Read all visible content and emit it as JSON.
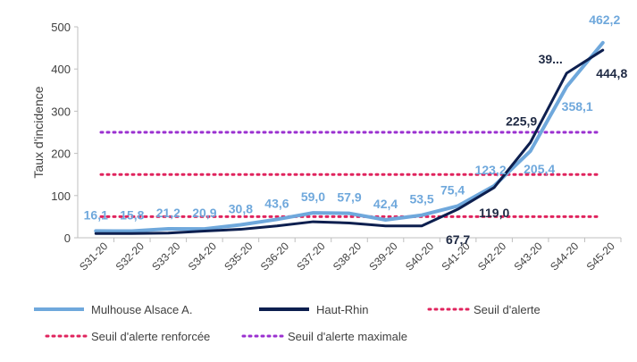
{
  "chart_data": {
    "type": "line",
    "ylabel": "Taux d'incidence",
    "ylim": [
      0,
      500
    ],
    "yticks": [
      "0",
      "100",
      "200",
      "300",
      "400",
      "500"
    ],
    "categories": [
      "S31-20",
      "S32-20",
      "S33-20",
      "S34-20",
      "S35-20",
      "S36-20",
      "S37-20",
      "S38-20",
      "S39-20",
      "S40-20",
      "S41-20",
      "S42-20",
      "S43-20",
      "S44-20",
      "S45-20"
    ],
    "series": [
      {
        "name": "Mulhouse Alsace A.",
        "color": "#6fa8dc",
        "values": [
          16.1,
          15.8,
          21.2,
          20.9,
          30.8,
          43.6,
          59.0,
          57.9,
          42.4,
          53.5,
          75.4,
          123.2,
          205.4,
          358.1,
          462.2
        ],
        "labels": [
          "16,1",
          "15,8",
          "21,2",
          "20,9",
          "30,8",
          "43,6",
          "59,0",
          "57,9",
          "42,4",
          "53,5",
          "75,4",
          "123,2",
          "205,4",
          "358,1",
          "462,2"
        ]
      },
      {
        "name": "Haut-Rhin",
        "color": "#0d1f4f",
        "values": [
          10,
          10,
          11,
          16,
          20,
          28,
          38,
          35,
          28,
          28,
          67.7,
          119.0,
          225.9,
          390,
          444.8
        ],
        "labels": [
          "",
          "",
          "",
          "",
          "",
          "",
          "",
          "",
          "",
          "",
          "67,7",
          "119,0",
          "225,9",
          "39...",
          "444,8"
        ]
      }
    ],
    "thresholds": [
      {
        "name": "Seuil d'alerte",
        "value": 50,
        "color": "#e0245e"
      },
      {
        "name": "Seuil d'alerte renforcée",
        "value": 150,
        "color": "#e0245e"
      },
      {
        "name": "Seuil d'alerte maximale",
        "value": 250,
        "color": "#9b30d0"
      }
    ],
    "grid": false,
    "legend": "bottom"
  }
}
